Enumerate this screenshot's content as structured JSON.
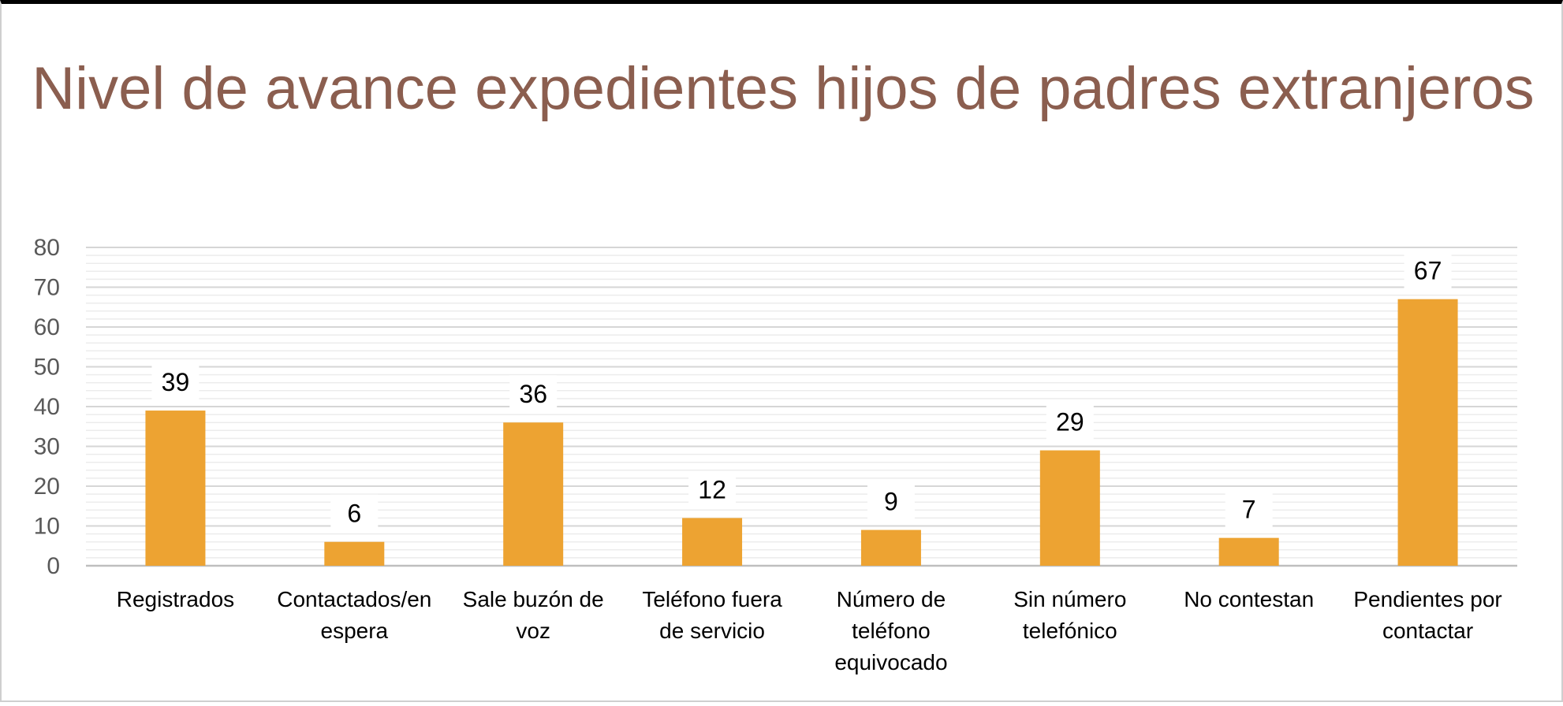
{
  "chart_data": {
    "type": "bar",
    "title": "Nivel de avance expedientes hijos de padres extranjeros",
    "categories": [
      "Registrados",
      "Contactados/en espera",
      "Sale buzón de voz",
      "Teléfono fuera de servicio",
      "Número de teléfono equivocado",
      "Sin número telefónico",
      "No contestan",
      "Pendientes por contactar"
    ],
    "category_lines": [
      [
        "Registrados"
      ],
      [
        "Contactados/en",
        "espera"
      ],
      [
        "Sale buzón de",
        "voz"
      ],
      [
        "Teléfono fuera",
        "de servicio"
      ],
      [
        "Número de",
        "teléfono",
        "equivocado"
      ],
      [
        "Sin número",
        "telefónico"
      ],
      [
        "No contestan"
      ],
      [
        "Pendientes por",
        "contactar"
      ]
    ],
    "values": [
      39,
      6,
      36,
      12,
      9,
      29,
      7,
      67
    ],
    "data_labels": [
      "39",
      "6",
      "36",
      "12",
      "9",
      "29",
      "7",
      "67"
    ],
    "ylim": [
      0,
      80
    ],
    "yticks": [
      "0",
      "10",
      "20",
      "30",
      "40",
      "50",
      "60",
      "70",
      "80"
    ],
    "grid": true,
    "legend": "none",
    "xlabel": "",
    "ylabel": "",
    "bar_color": "#EDA332",
    "title_color": "#8B5E4F"
  }
}
